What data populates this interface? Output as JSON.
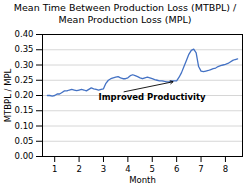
{
  "chart_data": {
    "type": "line",
    "title": "Mean Time Between Production Loss (MTBPL) /\nMean Production Loss (MPL)",
    "xlabel": "Month",
    "ylabel": "MTBPL / MPL",
    "xlim": [
      0.5,
      8.7
    ],
    "ylim": [
      0.0,
      0.4
    ],
    "xticks": [
      1,
      2,
      3,
      4,
      5,
      6,
      7,
      8
    ],
    "yticks": [
      {
        "value": 0.0,
        "label": "0.00"
      },
      0.05,
      {
        "value": 0.1,
        "label": "0.10"
      },
      0.15,
      {
        "value": 0.2,
        "label": "0.20"
      },
      0.25,
      {
        "value": 0.3,
        "label": "0.30"
      },
      0.35,
      {
        "value": 0.4,
        "label": "0.40"
      }
    ],
    "grid": true,
    "color": "#4472C4",
    "x": [
      0.7,
      0.8,
      0.9,
      1.0,
      1.1,
      1.2,
      1.3,
      1.4,
      1.5,
      1.6,
      1.7,
      1.8,
      1.9,
      2.0,
      2.1,
      2.2,
      2.3,
      2.4,
      2.5,
      2.6,
      2.7,
      2.8,
      2.9,
      3.0,
      3.1,
      3.2,
      3.3,
      3.4,
      3.5,
      3.6,
      3.7,
      3.8,
      3.9,
      4.0,
      4.1,
      4.2,
      4.3,
      4.4,
      4.5,
      4.6,
      4.7,
      4.8,
      4.9,
      5.0,
      5.1,
      5.2,
      5.3,
      5.4,
      5.5,
      5.6,
      5.7,
      5.8,
      5.9,
      6.0,
      6.1,
      6.2,
      6.3,
      6.4,
      6.5,
      6.6,
      6.7,
      6.8,
      6.9,
      7.0,
      7.1,
      7.2,
      7.3,
      7.4,
      7.5,
      7.6,
      7.7,
      7.8,
      7.9,
      8.0,
      8.1,
      8.2,
      8.3,
      8.4,
      8.5
    ],
    "values": [
      0.2,
      0.2,
      0.198,
      0.2,
      0.205,
      0.205,
      0.21,
      0.215,
      0.215,
      0.218,
      0.22,
      0.218,
      0.216,
      0.218,
      0.22,
      0.218,
      0.215,
      0.22,
      0.225,
      0.222,
      0.22,
      0.218,
      0.22,
      0.222,
      0.24,
      0.25,
      0.255,
      0.258,
      0.26,
      0.262,
      0.258,
      0.255,
      0.255,
      0.258,
      0.265,
      0.268,
      0.265,
      0.262,
      0.258,
      0.255,
      0.258,
      0.26,
      0.258,
      0.255,
      0.252,
      0.25,
      0.248,
      0.248,
      0.246,
      0.245,
      0.245,
      0.248,
      0.248,
      0.248,
      0.26,
      0.275,
      0.295,
      0.315,
      0.335,
      0.348,
      0.352,
      0.34,
      0.295,
      0.28,
      0.278,
      0.28,
      0.282,
      0.285,
      0.288,
      0.29,
      0.295,
      0.298,
      0.3,
      0.302,
      0.305,
      0.31,
      0.315,
      0.318,
      0.32
    ],
    "annotations": [
      {
        "text": "Improved Productivity",
        "x": 5.85,
        "y": 0.245,
        "text_x": 2.8,
        "text_y": 0.195
      }
    ]
  }
}
